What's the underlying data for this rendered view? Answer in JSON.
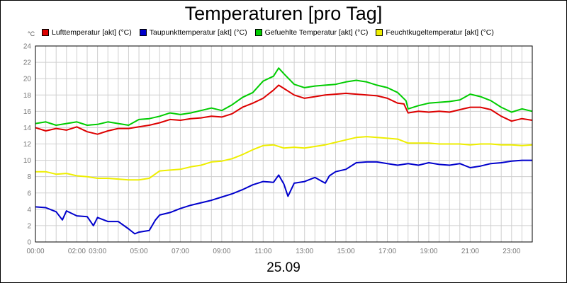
{
  "chart_data": {
    "type": "line",
    "title": "Temperaturen [pro Tag]",
    "unit_label": "°C",
    "xlabel": "25.09",
    "x_range_hours": [
      0,
      24
    ],
    "ylim": [
      0,
      24
    ],
    "y_ticks": [
      0,
      2,
      4,
      6,
      8,
      10,
      12,
      14,
      16,
      18,
      20,
      22,
      24
    ],
    "x_ticks": [
      {
        "hour": 0,
        "label": "00:00"
      },
      {
        "hour": 2,
        "label": "02:00"
      },
      {
        "hour": 3,
        "label": "03:00"
      },
      {
        "hour": 5,
        "label": "05:00"
      },
      {
        "hour": 7,
        "label": "07:00"
      },
      {
        "hour": 9,
        "label": "09:00"
      },
      {
        "hour": 11,
        "label": "11:00"
      },
      {
        "hour": 13,
        "label": "13:00"
      },
      {
        "hour": 15,
        "label": "15:00"
      },
      {
        "hour": 17,
        "label": "17:00"
      },
      {
        "hour": 19,
        "label": "19:00"
      },
      {
        "hour": 21,
        "label": "21:00"
      },
      {
        "hour": 23,
        "label": "23:00"
      }
    ],
    "grid": true,
    "legend_position": "top",
    "series": [
      {
        "name": "Lufttemperatur [akt] (°C)",
        "color": "#dd0000",
        "points": [
          [
            0,
            14
          ],
          [
            0.5,
            13.6
          ],
          [
            1,
            13.9
          ],
          [
            1.5,
            13.7
          ],
          [
            2,
            14.1
          ],
          [
            2.5,
            13.5
          ],
          [
            3,
            13.2
          ],
          [
            3.5,
            13.6
          ],
          [
            4,
            13.9
          ],
          [
            4.5,
            13.9
          ],
          [
            5,
            14.1
          ],
          [
            5.5,
            14.3
          ],
          [
            6,
            14.6
          ],
          [
            6.5,
            15.0
          ],
          [
            7,
            14.9
          ],
          [
            7.5,
            15.1
          ],
          [
            8,
            15.2
          ],
          [
            8.5,
            15.4
          ],
          [
            9,
            15.3
          ],
          [
            9.5,
            15.7
          ],
          [
            10,
            16.5
          ],
          [
            10.5,
            17.0
          ],
          [
            11,
            17.6
          ],
          [
            11.5,
            18.6
          ],
          [
            11.75,
            19.2
          ],
          [
            12,
            18.8
          ],
          [
            12.5,
            18.0
          ],
          [
            13,
            17.6
          ],
          [
            13.5,
            17.8
          ],
          [
            14,
            18.0
          ],
          [
            14.5,
            18.1
          ],
          [
            15,
            18.2
          ],
          [
            15.5,
            18.1
          ],
          [
            16,
            18.0
          ],
          [
            16.5,
            17.9
          ],
          [
            17,
            17.6
          ],
          [
            17.5,
            17.0
          ],
          [
            17.8,
            16.9
          ],
          [
            18,
            15.8
          ],
          [
            18.5,
            16.0
          ],
          [
            19,
            15.9
          ],
          [
            19.5,
            16.0
          ],
          [
            20,
            15.9
          ],
          [
            20.5,
            16.2
          ],
          [
            21,
            16.5
          ],
          [
            21.5,
            16.5
          ],
          [
            22,
            16.2
          ],
          [
            22.5,
            15.4
          ],
          [
            23,
            14.8
          ],
          [
            23.5,
            15.1
          ],
          [
            24,
            14.9
          ]
        ]
      },
      {
        "name": "Taupunkttemperatur [akt] (°C)",
        "color": "#0000cc",
        "points": [
          [
            0,
            4.3
          ],
          [
            0.5,
            4.2
          ],
          [
            1,
            3.7
          ],
          [
            1.3,
            2.7
          ],
          [
            1.5,
            3.8
          ],
          [
            2,
            3.2
          ],
          [
            2.5,
            3.1
          ],
          [
            2.8,
            2.0
          ],
          [
            3,
            3.0
          ],
          [
            3.5,
            2.5
          ],
          [
            4,
            2.5
          ],
          [
            4.5,
            1.6
          ],
          [
            4.8,
            1.0
          ],
          [
            5,
            1.2
          ],
          [
            5.5,
            1.4
          ],
          [
            5.8,
            2.7
          ],
          [
            6,
            3.3
          ],
          [
            6.5,
            3.6
          ],
          [
            7,
            4.1
          ],
          [
            7.5,
            4.5
          ],
          [
            8,
            4.8
          ],
          [
            8.5,
            5.1
          ],
          [
            9,
            5.5
          ],
          [
            9.5,
            5.9
          ],
          [
            10,
            6.4
          ],
          [
            10.5,
            7.0
          ],
          [
            11,
            7.4
          ],
          [
            11.5,
            7.3
          ],
          [
            11.75,
            8.2
          ],
          [
            12,
            7.1
          ],
          [
            12.2,
            5.6
          ],
          [
            12.5,
            7.2
          ],
          [
            13,
            7.4
          ],
          [
            13.5,
            7.9
          ],
          [
            14,
            7.2
          ],
          [
            14.2,
            8.1
          ],
          [
            14.5,
            8.6
          ],
          [
            15,
            8.9
          ],
          [
            15.5,
            9.7
          ],
          [
            16,
            9.8
          ],
          [
            16.5,
            9.8
          ],
          [
            17,
            9.6
          ],
          [
            17.5,
            9.4
          ],
          [
            18,
            9.6
          ],
          [
            18.5,
            9.4
          ],
          [
            19,
            9.7
          ],
          [
            19.5,
            9.5
          ],
          [
            20,
            9.4
          ],
          [
            20.5,
            9.6
          ],
          [
            21,
            9.1
          ],
          [
            21.5,
            9.3
          ],
          [
            22,
            9.6
          ],
          [
            22.5,
            9.7
          ],
          [
            23,
            9.9
          ],
          [
            23.5,
            10.0
          ],
          [
            24,
            10.0
          ]
        ]
      },
      {
        "name": "Gefuehlte Temperatur [akt] (°C)",
        "color": "#00cc00",
        "points": [
          [
            0,
            14.5
          ],
          [
            0.5,
            14.7
          ],
          [
            1,
            14.3
          ],
          [
            1.5,
            14.5
          ],
          [
            2,
            14.7
          ],
          [
            2.5,
            14.3
          ],
          [
            3,
            14.4
          ],
          [
            3.5,
            14.7
          ],
          [
            4,
            14.5
          ],
          [
            4.5,
            14.3
          ],
          [
            5,
            15.0
          ],
          [
            5.5,
            15.1
          ],
          [
            6,
            15.4
          ],
          [
            6.5,
            15.8
          ],
          [
            7,
            15.6
          ],
          [
            7.5,
            15.8
          ],
          [
            8,
            16.1
          ],
          [
            8.5,
            16.4
          ],
          [
            9,
            16.1
          ],
          [
            9.5,
            16.8
          ],
          [
            10,
            17.7
          ],
          [
            10.5,
            18.3
          ],
          [
            11,
            19.7
          ],
          [
            11.5,
            20.3
          ],
          [
            11.75,
            21.3
          ],
          [
            12,
            20.6
          ],
          [
            12.5,
            19.3
          ],
          [
            13,
            18.9
          ],
          [
            13.5,
            19.1
          ],
          [
            14,
            19.2
          ],
          [
            14.5,
            19.3
          ],
          [
            15,
            19.6
          ],
          [
            15.5,
            19.8
          ],
          [
            16,
            19.6
          ],
          [
            16.5,
            19.2
          ],
          [
            17,
            18.9
          ],
          [
            17.5,
            18.3
          ],
          [
            17.9,
            17.3
          ],
          [
            18,
            16.3
          ],
          [
            18.5,
            16.7
          ],
          [
            19,
            17.0
          ],
          [
            19.5,
            17.1
          ],
          [
            20,
            17.2
          ],
          [
            20.5,
            17.4
          ],
          [
            21,
            18.1
          ],
          [
            21.5,
            17.8
          ],
          [
            22,
            17.3
          ],
          [
            22.5,
            16.5
          ],
          [
            23,
            15.9
          ],
          [
            23.5,
            16.3
          ],
          [
            24,
            16.0
          ]
        ]
      },
      {
        "name": "Feuchtkugeltemperatur [akt] (°C)",
        "color": "#eeee00",
        "points": [
          [
            0,
            8.6
          ],
          [
            0.5,
            8.6
          ],
          [
            1,
            8.3
          ],
          [
            1.5,
            8.4
          ],
          [
            2,
            8.1
          ],
          [
            2.5,
            8.0
          ],
          [
            3,
            7.8
          ],
          [
            3.5,
            7.8
          ],
          [
            4,
            7.7
          ],
          [
            4.5,
            7.6
          ],
          [
            5,
            7.6
          ],
          [
            5.5,
            7.8
          ],
          [
            6,
            8.7
          ],
          [
            6.5,
            8.8
          ],
          [
            7,
            8.9
          ],
          [
            7.5,
            9.2
          ],
          [
            8,
            9.4
          ],
          [
            8.5,
            9.8
          ],
          [
            9,
            9.9
          ],
          [
            9.5,
            10.2
          ],
          [
            10,
            10.7
          ],
          [
            10.5,
            11.3
          ],
          [
            11,
            11.8
          ],
          [
            11.5,
            11.9
          ],
          [
            12,
            11.5
          ],
          [
            12.5,
            11.6
          ],
          [
            13,
            11.5
          ],
          [
            13.5,
            11.7
          ],
          [
            14,
            11.9
          ],
          [
            14.5,
            12.2
          ],
          [
            15,
            12.5
          ],
          [
            15.5,
            12.8
          ],
          [
            16,
            12.9
          ],
          [
            16.5,
            12.8
          ],
          [
            17,
            12.7
          ],
          [
            17.5,
            12.6
          ],
          [
            18,
            12.1
          ],
          [
            18.5,
            12.1
          ],
          [
            19,
            12.1
          ],
          [
            19.5,
            12.0
          ],
          [
            20,
            12.0
          ],
          [
            20.5,
            12.0
          ],
          [
            21,
            11.9
          ],
          [
            21.5,
            12.0
          ],
          [
            22,
            12.0
          ],
          [
            22.5,
            11.9
          ],
          [
            23,
            11.9
          ],
          [
            23.5,
            11.8
          ],
          [
            24,
            11.9
          ]
        ]
      }
    ]
  }
}
